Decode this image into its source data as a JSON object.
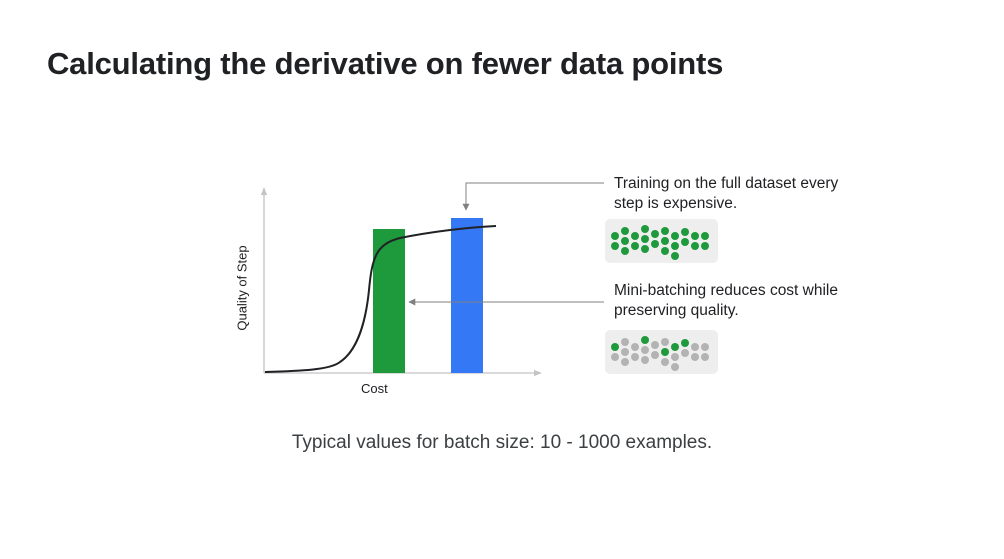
{
  "title": "Calculating the derivative on fewer data points",
  "figure": {
    "x_axis_label": "Cost",
    "y_axis_label": "Quality of Step",
    "bars": [
      {
        "name": "mini-batch",
        "color": "#1e9a3c"
      },
      {
        "name": "full-dataset",
        "color": "#3478f6"
      }
    ],
    "annotations": {
      "full_dataset": {
        "line1": "Training on the full dataset every",
        "line2": "step is expensive."
      },
      "mini_batch": {
        "line1": "Mini-batching reduces cost while",
        "line2": "preserving quality."
      }
    },
    "colors": {
      "sampled_point": "#1e9a3c",
      "unsampled_point": "#b3b3b3",
      "panel": "#eeeeee",
      "curve": "#202124",
      "axis": "#c4c4c4",
      "arrow": "#808080"
    },
    "full_dataset_points": [
      "g",
      "g",
      "g",
      "g",
      "g",
      "g",
      "g",
      "g",
      "g",
      "g",
      "g",
      "g",
      "g",
      "g",
      "g",
      "g",
      "g",
      "g",
      "g",
      "g",
      "g",
      "g",
      "g",
      "g"
    ],
    "mini_batch_points": [
      "g",
      "s",
      "s",
      "s",
      "s",
      "s",
      "s",
      "g",
      "s",
      "s",
      "s",
      "s",
      "s",
      "g",
      "s",
      "g",
      "s",
      "s",
      "g",
      "s",
      "s",
      "s",
      "s",
      "s"
    ]
  },
  "caption": "Typical values for batch size: 10 - 1000 examples."
}
